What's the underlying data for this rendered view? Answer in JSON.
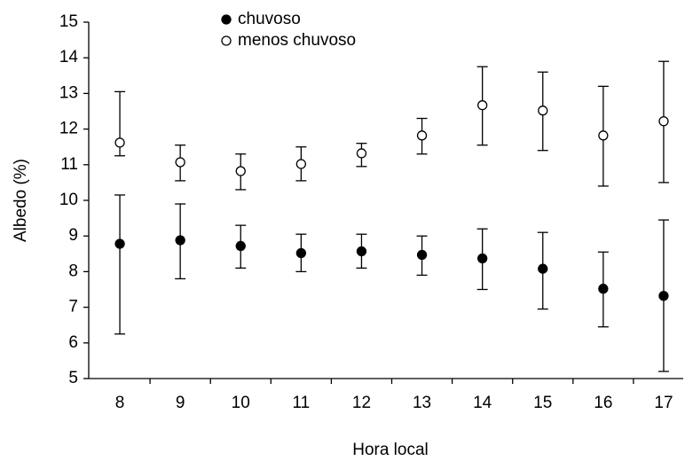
{
  "chart_data": {
    "type": "errorbar",
    "x_label": "Hora local",
    "y_label": "Albedo (%)",
    "categories": [
      "8",
      "9",
      "10",
      "11",
      "12",
      "13",
      "14",
      "15",
      "16",
      "17"
    ],
    "ylim": [
      5,
      15
    ],
    "yticks": [
      5,
      6,
      7,
      8,
      9,
      10,
      11,
      12,
      13,
      14,
      15
    ],
    "legend": "top",
    "series": [
      {
        "name": "chuvoso",
        "color": "#000000",
        "marker": "filled",
        "values": [
          8.78,
          8.88,
          8.72,
          8.52,
          8.57,
          8.47,
          8.37,
          8.08,
          7.52,
          7.32
        ],
        "lower": [
          6.25,
          7.8,
          8.1,
          8.0,
          8.1,
          7.9,
          7.5,
          6.95,
          6.45,
          5.2
        ],
        "upper": [
          10.15,
          9.9,
          9.3,
          9.05,
          9.05,
          9.0,
          9.2,
          9.1,
          8.55,
          9.45
        ]
      },
      {
        "name": "menos chuvoso",
        "color": "#000000",
        "marker": "open",
        "values": [
          11.62,
          11.07,
          10.82,
          11.02,
          11.32,
          11.82,
          12.67,
          12.52,
          11.82,
          12.22
        ],
        "lower": [
          11.25,
          10.55,
          10.3,
          10.55,
          10.95,
          11.3,
          11.55,
          11.4,
          10.4,
          10.5
        ],
        "upper": [
          13.05,
          11.55,
          11.3,
          11.5,
          11.6,
          12.3,
          13.75,
          13.6,
          13.2,
          13.9
        ]
      }
    ]
  }
}
